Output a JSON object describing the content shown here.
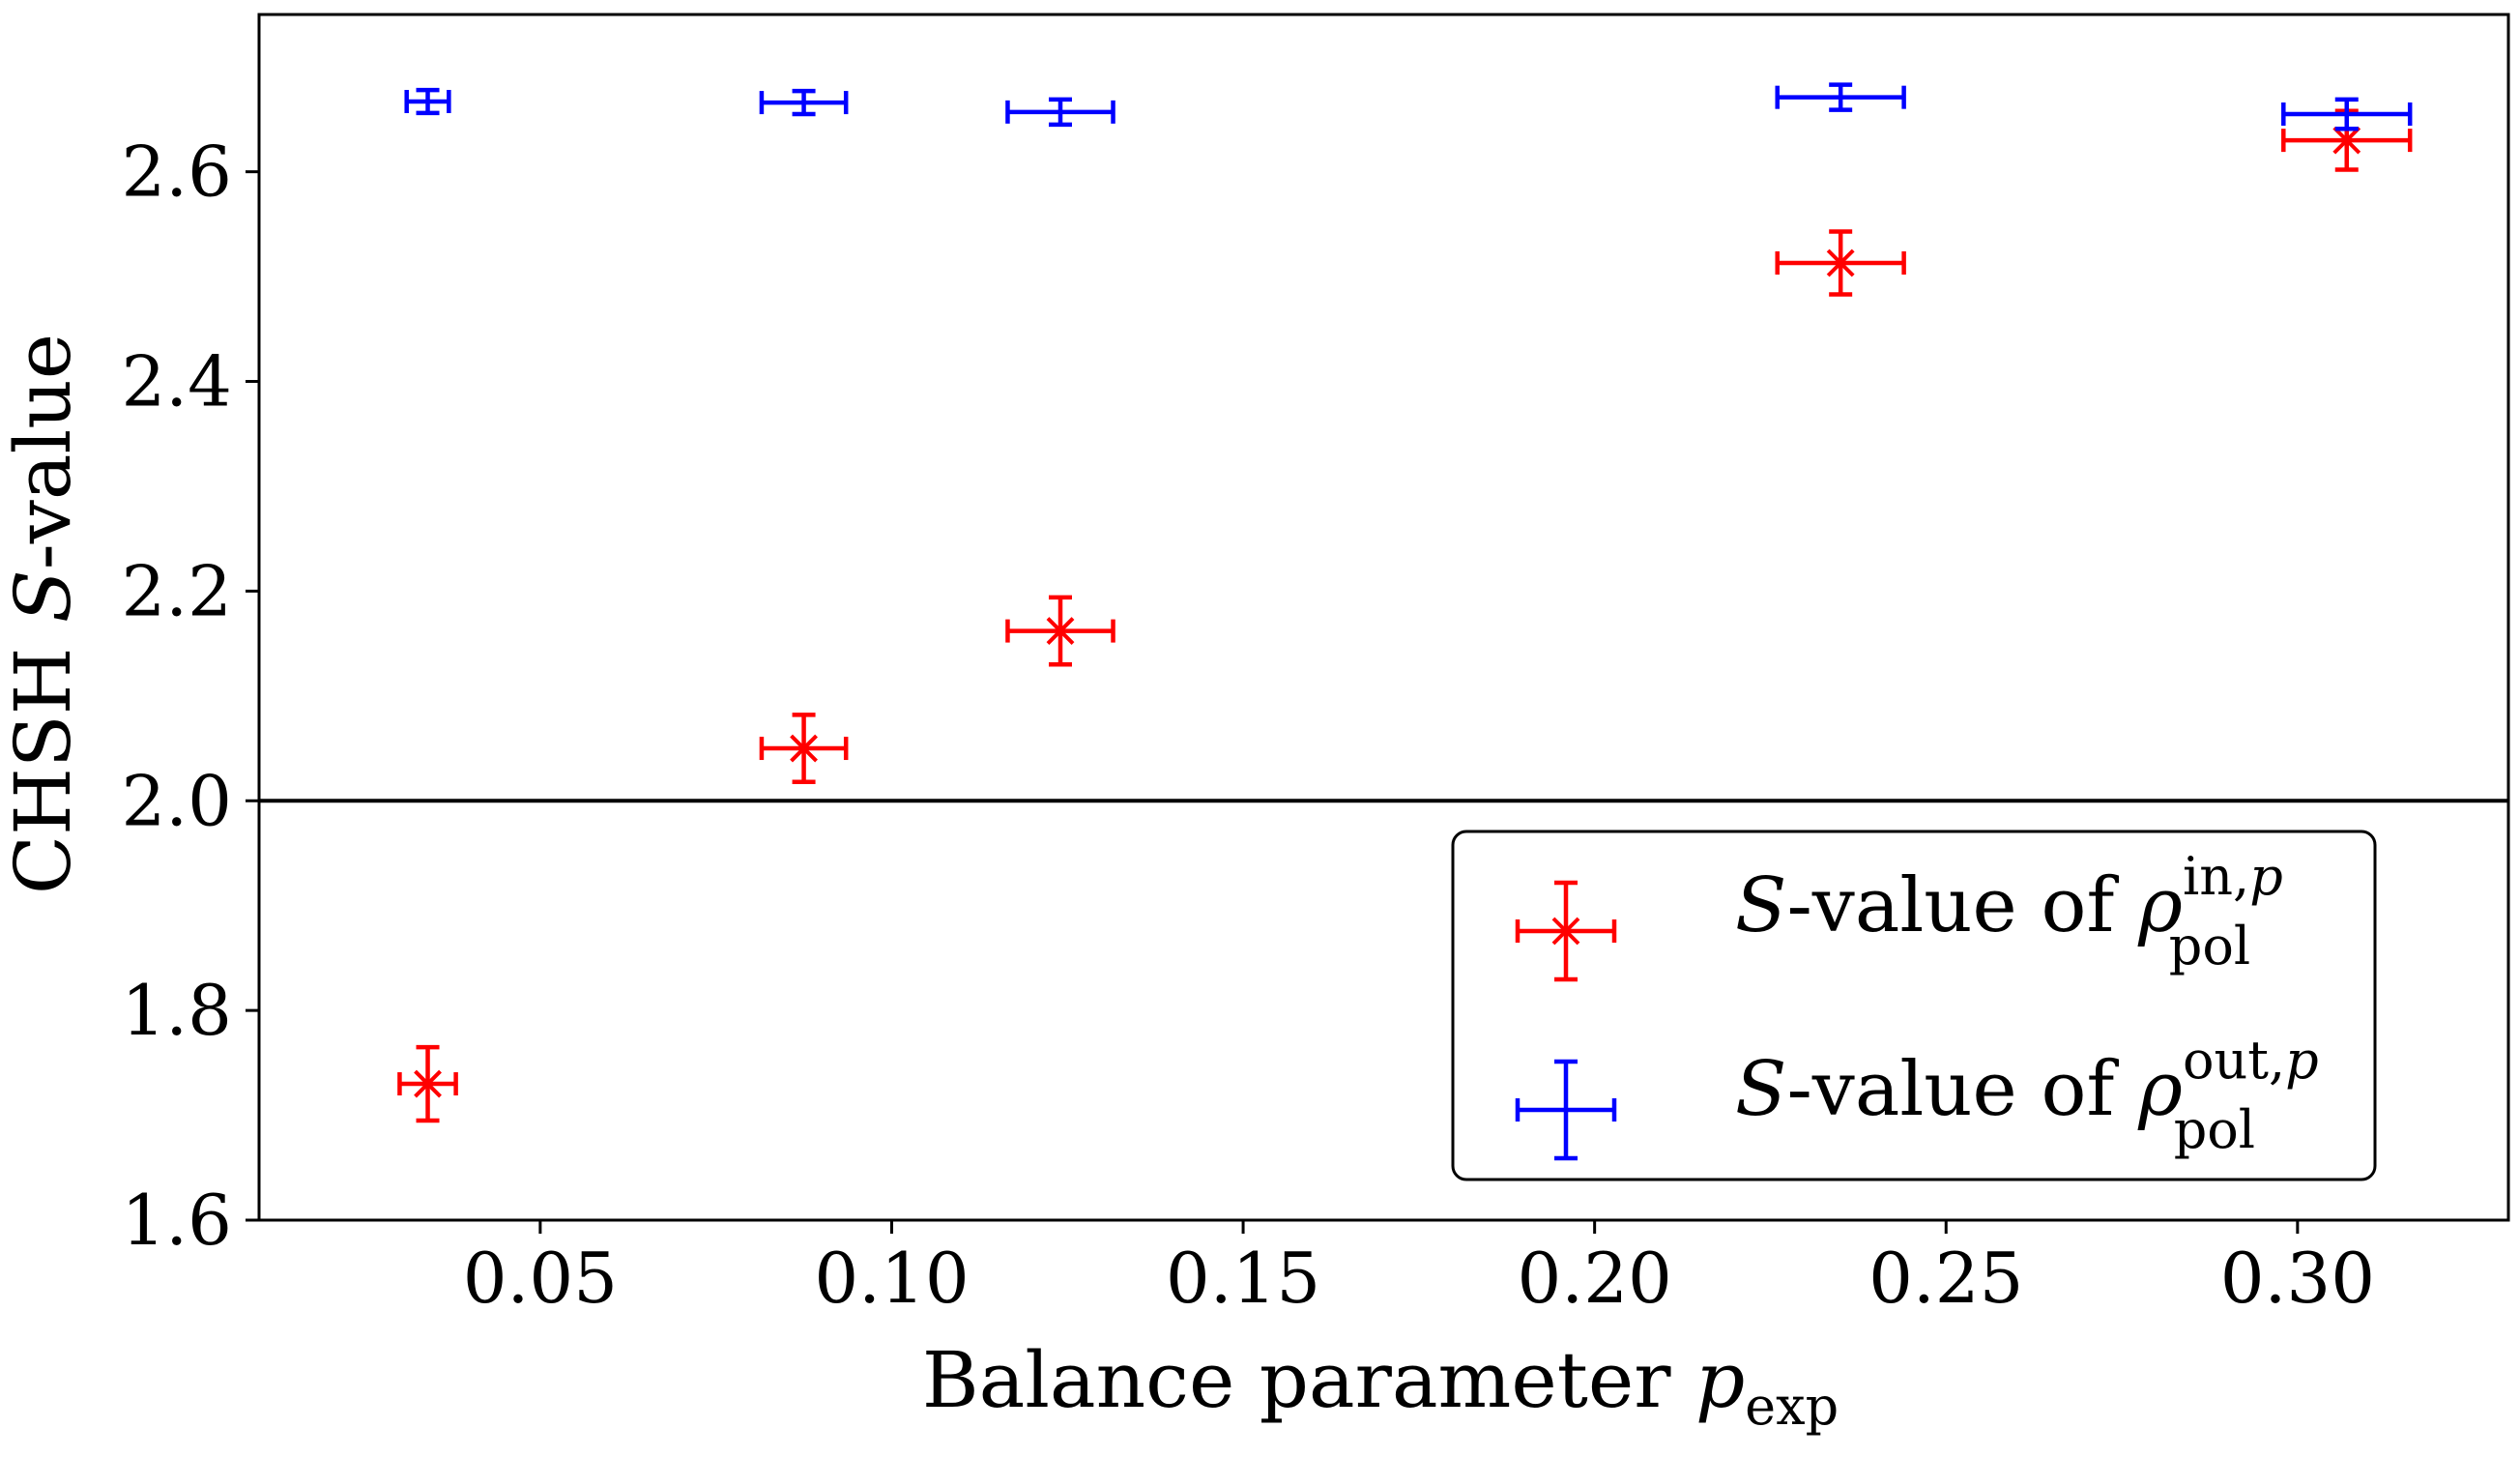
{
  "chart_data": {
    "type": "scatter",
    "title": "",
    "xlabel": "Balance parameter",
    "xlabel_symbol": "p",
    "xlabel_sub": "exp",
    "ylabel": "CHSH",
    "ylabel_symbol": "S",
    "ylabel_suffix": "-value",
    "xlim": [
      0.01,
      0.33
    ],
    "ylim": [
      1.6,
      2.75
    ],
    "xticks": [
      0.05,
      0.1,
      0.15,
      0.2,
      0.25,
      0.3
    ],
    "xtick_labels": [
      "0.05",
      "0.10",
      "0.15",
      "0.20",
      "0.25",
      "0.30"
    ],
    "yticks": [
      1.6,
      1.8,
      2.0,
      2.2,
      2.4,
      2.6
    ],
    "ytick_labels": [
      "1.6",
      "1.8",
      "2.0",
      "2.2",
      "2.4",
      "2.6"
    ],
    "reference_line": {
      "y": 2.0,
      "color": "#000000"
    },
    "grid": false,
    "legend_position": "lower-right",
    "series": [
      {
        "name": "S-value of rho_pol^{in,p}",
        "legend_symbol": "S",
        "legend_text": "-value of",
        "legend_rho": "ρ",
        "legend_sub": "pol",
        "legend_sup": "in,",
        "legend_sup_it": "p",
        "color": "#ff0000",
        "marker": "x",
        "points": [
          {
            "x": 0.034,
            "y": 1.73,
            "xerr": 0.004,
            "yerr": 0.035
          },
          {
            "x": 0.0875,
            "y": 2.05,
            "xerr": 0.006,
            "yerr": 0.032
          },
          {
            "x": 0.124,
            "y": 2.162,
            "xerr": 0.0075,
            "yerr": 0.032
          },
          {
            "x": 0.235,
            "y": 2.513,
            "xerr": 0.009,
            "yerr": 0.03
          },
          {
            "x": 0.307,
            "y": 2.63,
            "xerr": 0.009,
            "yerr": 0.028
          }
        ]
      },
      {
        "name": "S-value of rho_pol^{out,p}",
        "legend_symbol": "S",
        "legend_text": "-value of",
        "legend_rho": "ρ",
        "legend_sub": "pol",
        "legend_sup": "out,",
        "legend_sup_it": "p",
        "color": "#0000ff",
        "marker": "none",
        "points": [
          {
            "x": 0.034,
            "y": 2.667,
            "xerr": 0.003,
            "yerr": 0.011
          },
          {
            "x": 0.0875,
            "y": 2.666,
            "xerr": 0.006,
            "yerr": 0.011
          },
          {
            "x": 0.124,
            "y": 2.657,
            "xerr": 0.0075,
            "yerr": 0.012
          },
          {
            "x": 0.235,
            "y": 2.671,
            "xerr": 0.009,
            "yerr": 0.012
          },
          {
            "x": 0.307,
            "y": 2.655,
            "xerr": 0.009,
            "yerr": 0.014
          }
        ]
      }
    ]
  }
}
